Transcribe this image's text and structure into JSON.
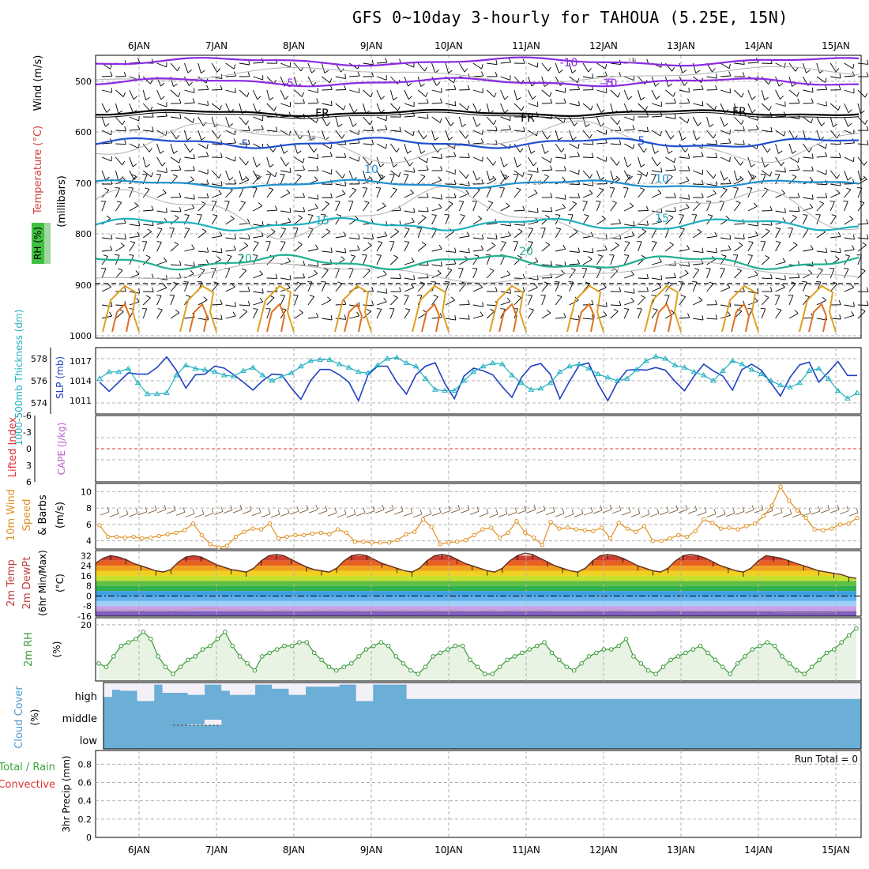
{
  "title": "GFS 0~10day 3-hourly for TAHOUA (5.25E, 15N)",
  "colors": {
    "grid": "#b0b0b0",
    "rh_green": "#3aa63a",
    "temperature": "#d04040",
    "wind_label": "#000000",
    "thickness": "#20b0c0",
    "slp": "#2040c0",
    "lifted_index": "#e03030",
    "cape": "#c060d0",
    "wind10m": "#e09020",
    "barb10m": "#806040",
    "cloud": "#6baed6",
    "cloud_clear": "#f4f0f8",
    "rh2m": "#3a9a3a",
    "rh2m_fill": "#e8f3e4",
    "precip_total": "#3aa63a",
    "precip_conv": "#e03030"
  },
  "date_labels": [
    "6JAN",
    "7JAN",
    "8JAN",
    "9JAN",
    "10JAN",
    "11JAN",
    "12JAN",
    "13JAN",
    "14JAN",
    "15JAN"
  ],
  "panels": {
    "upper": {
      "ylabel_rh": "RH (%)",
      "ylabel_temp": "Temperature (°C)",
      "ylabel_wind": "Wind (m/s)",
      "ylabel_mb": "(millibars)",
      "ticks": [
        "500",
        "600",
        "700",
        "800",
        "900",
        "1000"
      ],
      "contour_labels": [
        "-10",
        "-10",
        "-5",
        "-5",
        "FR",
        "FR",
        "FR",
        "5",
        "5",
        "10",
        "10",
        "15",
        "15",
        "20",
        "20",
        "10",
        "10",
        "10",
        "10"
      ]
    },
    "slp": {
      "ylabel_thk": "1000-500mb Thickness (dm)",
      "ylabel_slp": "SLP (mb)",
      "left_ticks": [
        "578",
        "576",
        "574"
      ],
      "right_ticks": [
        "1017",
        "1014",
        "1011"
      ]
    },
    "cape": {
      "ylabel_li": "Lifted Index",
      "ylabel_cape": "CAPE (J/kg)",
      "ticks": [
        "-6",
        "-3",
        "0",
        "3",
        "6"
      ]
    },
    "wind10": {
      "ylabel_1": "10m Wind",
      "ylabel_2": "Speed",
      "ylabel_3": "& Barbs",
      "ylabel_unit": "(m/s)",
      "ticks": [
        "10",
        "8",
        "6",
        "4"
      ]
    },
    "temp2m": {
      "ylabel_1": "2m Temp",
      "ylabel_2": "2m DewPt",
      "ylabel_3": "(6hr Min/Max)",
      "ylabel_unit": "(°C)",
      "ticks": [
        "32",
        "24",
        "16",
        "8",
        "0",
        "-8",
        "-16"
      ]
    },
    "rh2m": {
      "ylabel": "2m RH",
      "ylabel_unit": "(%)",
      "ticks": [
        "20"
      ]
    },
    "cloud": {
      "ylabel": "Cloud Cover",
      "ylabel_unit": "(%)",
      "levels": [
        "high",
        "middle",
        "low"
      ]
    },
    "precip": {
      "ylabel_1": "Total / Rain",
      "ylabel_2": "Convective",
      "ylabel_3": "3hr Precip (mm)",
      "ticks": [
        "0.8",
        "0.6",
        "0.4",
        "0.2",
        "0"
      ],
      "run_total": "Run Total = 0"
    }
  },
  "chart_data": [
    {
      "type": "line",
      "panel": "thickness_slp",
      "title": "",
      "series": [
        {
          "name": "SLP (mb)",
          "values": [
            1013.8,
            1012.4,
            1013.8,
            1015.2,
            1015.0,
            1015.0,
            1016.0,
            1017.6,
            1015.6,
            1012.9,
            1014.9,
            1015.0,
            1016.2,
            1015.9,
            1014.9,
            1013.8,
            1012.6,
            1014.0,
            1015.0,
            1014.9,
            1012.9,
            1011.2,
            1014.0,
            1015.7,
            1015.7,
            1014.9,
            1013.8,
            1011.0,
            1014.9,
            1016.2,
            1016.2,
            1013.8,
            1012.0,
            1014.9,
            1016.2,
            1016.7,
            1013.6,
            1011.3,
            1014.7,
            1015.9,
            1015.5,
            1014.9,
            1013.1,
            1011.5,
            1014.5,
            1016.2,
            1016.6,
            1015.0,
            1011.3,
            1013.9,
            1016.3,
            1016.7,
            1013.5,
            1011.0,
            1013.8,
            1015.6,
            1015.7,
            1015.6,
            1016.0,
            1015.6,
            1013.9,
            1012.5,
            1014.7,
            1016.5,
            1015.5,
            1014.7,
            1012.6,
            1015.7,
            1016.5,
            1015.6,
            1013.7,
            1011.7,
            1014.5,
            1016.4,
            1016.8,
            1013.8,
            1015.3,
            1016.9,
            1014.8,
            1014.8
          ]
        },
        {
          "name": "Thickness (dm)",
          "values": [
            576.2,
            576.8,
            576.8,
            577.1,
            575.8,
            574.8,
            574.8,
            574.9,
            576.5,
            577.4,
            577.1,
            577.0,
            576.8,
            576.5,
            576.4,
            576.9,
            577.2,
            576.5,
            576.0,
            576.4,
            576.7,
            577.3,
            577.8,
            577.9,
            577.9,
            577.5,
            577.2,
            576.8,
            576.7,
            577.4,
            578.0,
            578.1,
            577.6,
            577.3,
            576.2,
            575.2,
            575.1,
            575.1,
            576.0,
            576.8,
            577.3,
            577.6,
            577.5,
            576.5,
            575.8,
            575.2,
            575.3,
            575.8,
            576.8,
            577.3,
            577.5,
            577.1,
            576.6,
            576.3,
            576.0,
            576.2,
            577.0,
            577.8,
            578.2,
            578.0,
            577.4,
            577.2,
            576.8,
            576.5,
            576.0,
            576.9,
            577.8,
            577.5,
            577.0,
            576.6,
            576.0,
            575.6,
            575.4,
            575.8,
            576.9,
            577.1,
            576.2,
            575.1,
            574.4,
            574.9
          ]
        }
      ],
      "ylim_left": [
        573,
        579
      ],
      "ylim_right": [
        1009,
        1019
      ]
    },
    {
      "type": "line",
      "panel": "lifted_index_cape",
      "series": [
        {
          "name": "Lifted Index",
          "values": [
            0
          ]
        }
      ],
      "ylim": [
        6,
        -6
      ]
    },
    {
      "type": "line",
      "panel": "wind10m",
      "series": [
        {
          "name": "10m Wind Speed (m/s)",
          "values": [
            5.9,
            4.5,
            4.5,
            4.4,
            4.5,
            4.3,
            4.4,
            4.6,
            4.8,
            5.0,
            5.3,
            6.1,
            4.7,
            3.6,
            3.2,
            3.4,
            4.5,
            5.1,
            5.5,
            5.4,
            6.1,
            4.3,
            4.5,
            4.7,
            4.7,
            4.9,
            5.0,
            4.8,
            5.4,
            5.0,
            3.9,
            3.9,
            3.8,
            3.8,
            3.8,
            4.1,
            4.8,
            5.1,
            6.6,
            5.7,
            3.6,
            3.8,
            3.9,
            4.1,
            4.7,
            5.4,
            5.6,
            4.4,
            5.0,
            6.4,
            5.0,
            4.4,
            3.5,
            6.3,
            5.5,
            5.6,
            5.4,
            5.3,
            5.2,
            5.6,
            4.3,
            6.2,
            5.5,
            5.1,
            5.8,
            4.0,
            4.0,
            4.3,
            4.7,
            4.5,
            5.2,
            6.6,
            6.2,
            5.5,
            5.6,
            5.4,
            5.8,
            6.1,
            7.0,
            8.3,
            10.6,
            8.9,
            7.7,
            6.8,
            5.4,
            5.3,
            5.5,
            6.0,
            6.1,
            6.8
          ]
        }
      ],
      "ylim": [
        3,
        11
      ]
    },
    {
      "type": "area",
      "panel": "temp2m",
      "series": [
        {
          "name": "2m Temp (°C)",
          "values": [
            26,
            30,
            32,
            31,
            29,
            26,
            24,
            22,
            20,
            19,
            21,
            27,
            31,
            32,
            31,
            28,
            25,
            23,
            21,
            20,
            19,
            22,
            28,
            32,
            33,
            32,
            29,
            26,
            23,
            21,
            20,
            19,
            22,
            28,
            32,
            33,
            32,
            29,
            26,
            24,
            22,
            20,
            19,
            22,
            28,
            32,
            33,
            32,
            29,
            26,
            24,
            22,
            20,
            19,
            22,
            28,
            32,
            34,
            33,
            30,
            27,
            24,
            22,
            20,
            19,
            22,
            28,
            32,
            33,
            32,
            30,
            27,
            24,
            22,
            20,
            19,
            22,
            28,
            32,
            33,
            32,
            30,
            27,
            24,
            22,
            20,
            19,
            22,
            28,
            32,
            31,
            30,
            28,
            26,
            24,
            22,
            20,
            19,
            18,
            17,
            15,
            14
          ]
        },
        {
          "name": "2m DewPt (°C)",
          "values": [
            -11,
            -11,
            -12,
            -11,
            -11,
            -12,
            -11,
            -11,
            -11,
            -12,
            -11,
            -11,
            -10,
            -10,
            -10,
            -11,
            -11,
            -11,
            -12,
            -11,
            -12,
            -12,
            -11,
            -12,
            -12,
            -12,
            -11,
            -12,
            -11,
            -12,
            -11,
            -12,
            -12,
            -11,
            -12,
            -12,
            -11,
            -12,
            -12,
            -11,
            -12,
            -12,
            -11,
            -12,
            -12,
            -12,
            -11,
            -12,
            -12,
            -11,
            -12,
            -12,
            -11,
            -12,
            -12,
            -12,
            -12,
            -12,
            -11,
            -12,
            -12,
            -11,
            -12,
            -12,
            -12,
            -12,
            -12,
            -11,
            -12,
            -12,
            -12,
            -12,
            -12,
            -12,
            -12,
            -12,
            -12,
            -12,
            -12,
            -12,
            -13,
            -13,
            -13,
            -13,
            -13,
            -13,
            -13,
            -12,
            -12,
            -12
          ]
        }
      ],
      "ylim": [
        -16,
        36
      ]
    },
    {
      "type": "line",
      "panel": "rh2m",
      "series": [
        {
          "name": "2m RH (%)",
          "values": [
            9,
            8,
            11,
            14,
            15,
            16,
            18,
            16,
            11,
            8,
            6,
            8,
            10,
            11,
            13,
            14,
            16,
            18,
            14,
            11,
            9,
            7,
            11,
            12,
            13,
            14,
            14,
            15,
            15,
            12,
            10,
            8,
            7,
            8,
            9,
            11,
            13,
            14,
            15,
            14,
            11,
            9,
            7,
            6,
            8,
            11,
            12,
            13,
            14,
            14,
            10,
            8,
            6,
            6,
            8,
            10,
            11,
            12,
            13,
            14,
            15,
            12,
            10,
            8,
            7,
            9,
            11,
            12,
            13,
            13,
            14,
            16,
            11,
            9,
            7,
            6,
            8,
            10,
            11,
            12,
            13,
            14,
            12,
            10,
            8,
            6,
            9,
            11,
            13,
            14,
            15,
            14,
            11,
            9,
            7,
            6,
            8,
            10,
            12,
            13,
            15,
            17,
            19
          ]
        }
      ],
      "ylim": [
        4,
        22
      ]
    },
    {
      "type": "bar",
      "panel": "cloud_cover",
      "series": [
        {
          "name": "high (%)",
          "values": [
            30,
            65,
            60,
            60,
            10,
            10,
            90,
            50,
            50,
            50,
            40,
            40,
            90,
            90,
            60,
            40,
            40,
            40,
            90,
            90,
            70,
            70,
            40,
            40,
            80,
            80,
            80,
            80,
            90,
            90,
            10,
            10,
            90,
            90,
            90,
            90,
            20,
            20,
            20,
            20,
            20,
            20,
            20,
            20,
            20,
            20,
            20,
            20,
            20,
            20,
            20,
            20,
            20,
            20,
            20,
            20,
            20,
            20,
            20,
            20,
            20,
            20,
            20,
            20,
            20,
            20,
            20,
            20,
            20,
            20,
            20,
            20,
            20,
            20,
            20,
            20,
            20,
            20,
            20,
            20,
            20,
            20,
            20,
            20,
            20,
            20,
            20,
            20,
            20,
            20
          ]
        },
        {
          "name": "middle (%)",
          "values": [
            0,
            0,
            0,
            0,
            0,
            0,
            0,
            0,
            0,
            0,
            10,
            10,
            70,
            70,
            0,
            0,
            0,
            0,
            0,
            0,
            0,
            0,
            0,
            0,
            0,
            0,
            0,
            0,
            0,
            0,
            0,
            0,
            0,
            0,
            0,
            0,
            0,
            0,
            0,
            0,
            0,
            0,
            0,
            0,
            0,
            0,
            0,
            0,
            0,
            0,
            0,
            0,
            0,
            0,
            0,
            0,
            0,
            0,
            0,
            0,
            0,
            0,
            0,
            0,
            0,
            0,
            0,
            0,
            0,
            0,
            0,
            0,
            0,
            0,
            0,
            0,
            0,
            0,
            0,
            0,
            0,
            0,
            0,
            0,
            0,
            0,
            0,
            0,
            0,
            0
          ]
        },
        {
          "name": "low (%)",
          "values": [
            0
          ]
        }
      ]
    },
    {
      "type": "bar",
      "panel": "precip",
      "series": [
        {
          "name": "Total / Rain (mm)",
          "values": [
            0
          ]
        },
        {
          "name": "Convective (mm)",
          "values": [
            0
          ]
        }
      ],
      "ylim": [
        0,
        0.95
      ]
    }
  ]
}
